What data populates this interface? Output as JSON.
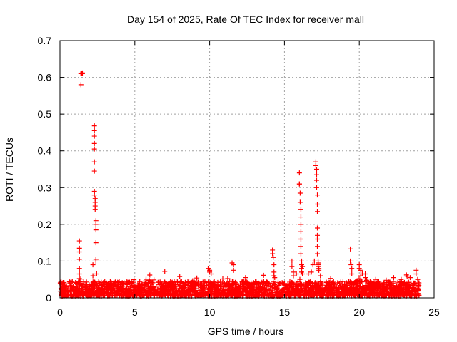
{
  "chart_data": {
    "type": "scatter",
    "title": "Day 154 of 2025, Rate Of TEC Index for receiver mall",
    "xlabel": "GPS time / hours",
    "ylabel": "ROTI / TECUs",
    "xlim": [
      0,
      25
    ],
    "ylim": [
      0,
      0.7
    ],
    "xticks": [
      "0",
      "5",
      "10",
      "15",
      "20",
      "25"
    ],
    "yticks": [
      "0",
      "0.1",
      "0.2",
      "0.3",
      "0.4",
      "0.5",
      "0.6",
      "0.7"
    ],
    "grid": true,
    "marker": "plus",
    "color": "#ff0000",
    "series": [
      {
        "x": [
          1.3,
          1.3,
          1.3,
          1.3,
          1.3,
          1.3,
          1.4,
          1.4,
          1.45,
          1.5,
          1.5,
          1.4,
          2.3,
          2.3,
          2.3,
          2.3,
          2.3,
          2.3,
          2.3,
          2.3,
          2.3,
          2.35,
          2.35,
          2.35,
          2.35,
          2.4,
          2.4,
          2.4,
          2.4,
          2.4,
          2.4,
          2.2,
          2.2,
          2.45,
          6.0,
          7.0,
          8.0,
          9.9,
          10.0,
          10.0,
          10.1,
          11.5,
          11.6,
          11.6,
          12.4,
          14.2,
          14.2,
          14.25,
          14.3,
          14.3,
          14.3,
          14.35,
          15.5,
          15.5,
          15.6,
          15.6,
          15.8,
          16.0,
          16.0,
          16.0,
          16.05,
          16.05,
          16.1,
          16.1,
          16.1,
          16.1,
          16.1,
          16.1,
          16.1,
          16.15,
          16.15,
          16.15,
          16.15,
          16.2,
          16.2,
          16.6,
          16.8,
          16.9,
          17.0,
          17.1,
          17.1,
          17.15,
          17.15,
          17.15,
          17.15,
          17.2,
          17.2,
          17.2,
          17.2,
          17.2,
          17.2,
          17.2,
          17.2,
          17.25,
          17.25,
          17.25,
          17.25,
          17.3,
          17.3,
          17.4,
          19.4,
          19.4,
          19.45,
          19.5,
          19.5,
          20.0,
          20.0,
          20.1,
          20.1,
          20.2,
          20.4,
          20.4,
          22.3,
          22.8,
          23.4,
          23.8,
          23.8,
          23.9
        ],
        "y": [
          0.155,
          0.135,
          0.125,
          0.105,
          0.08,
          0.065,
          0.61,
          0.61,
          0.61,
          0.61,
          0.612,
          0.58,
          0.468,
          0.455,
          0.44,
          0.42,
          0.405,
          0.37,
          0.345,
          0.29,
          0.28,
          0.27,
          0.26,
          0.25,
          0.24,
          0.21,
          0.2,
          0.185,
          0.15,
          0.1,
          0.105,
          0.09,
          0.06,
          0.065,
          0.062,
          0.072,
          0.058,
          0.08,
          0.07,
          0.075,
          0.065,
          0.095,
          0.09,
          0.075,
          0.055,
          0.13,
          0.12,
          0.11,
          0.09,
          0.07,
          0.06,
          0.055,
          0.1,
          0.085,
          0.07,
          0.06,
          0.065,
          0.34,
          0.31,
          0.31,
          0.285,
          0.26,
          0.24,
          0.22,
          0.2,
          0.18,
          0.16,
          0.14,
          0.12,
          0.1,
          0.09,
          0.08,
          0.07,
          0.085,
          0.065,
          0.065,
          0.07,
          0.09,
          0.1,
          0.37,
          0.36,
          0.35,
          0.335,
          0.32,
          0.3,
          0.28,
          0.255,
          0.235,
          0.19,
          0.17,
          0.16,
          0.14,
          0.12,
          0.1,
          0.095,
          0.09,
          0.085,
          0.08,
          0.075,
          0.06,
          0.133,
          0.1,
          0.09,
          0.08,
          0.065,
          0.09,
          0.08,
          0.075,
          0.06,
          0.065,
          0.065,
          0.055,
          0.055,
          0.05,
          0.055,
          0.075,
          0.065,
          0.05
        ]
      }
    ],
    "baseline": {
      "description_hours": [
        0,
        24
      ],
      "typical_range": [
        0.005,
        0.045
      ]
    }
  }
}
